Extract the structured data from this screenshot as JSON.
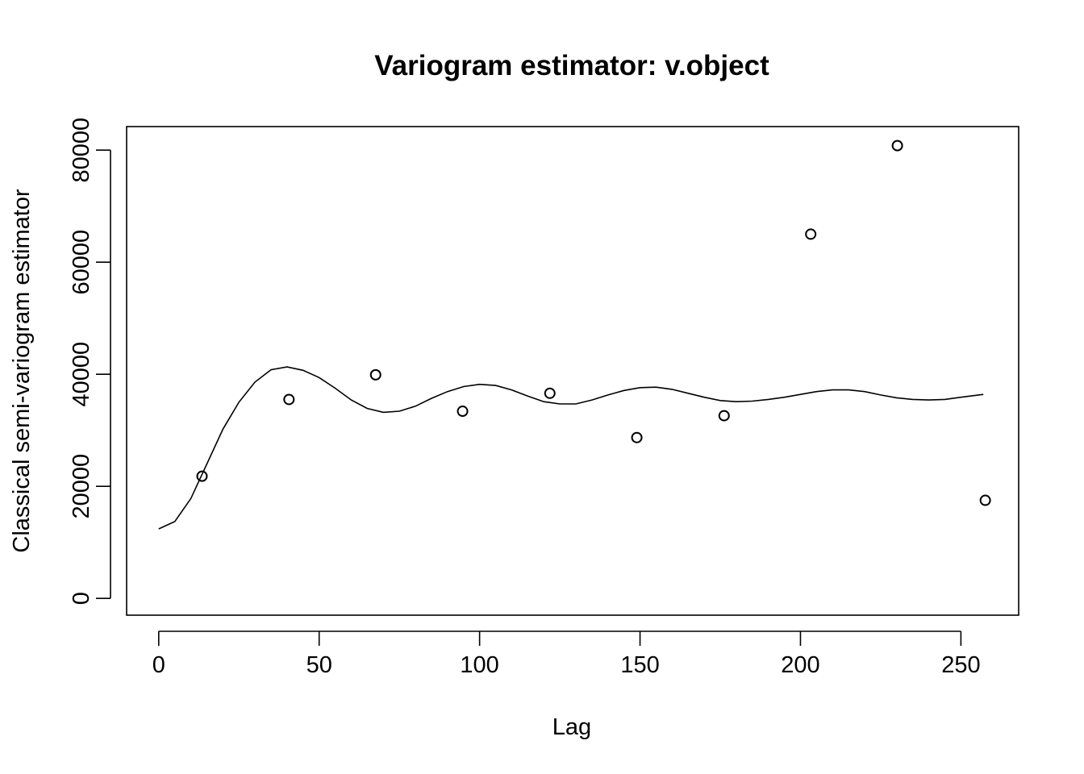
{
  "chart_data": {
    "type": "scatter",
    "title": "Variogram estimator: v.object",
    "xlabel": "Lag",
    "ylabel": "Classical semi-variogram estimator",
    "xlim": [
      -10,
      268
    ],
    "ylim": [
      -3000,
      84200
    ],
    "x_ticks": [
      0,
      50,
      100,
      150,
      200,
      250
    ],
    "x_tick_labels": [
      "0",
      "50",
      "100",
      "150",
      "200",
      "250"
    ],
    "y_ticks": [
      0,
      20000,
      40000,
      60000,
      80000
    ],
    "y_tick_labels": [
      "0",
      "20000",
      "40000",
      "60000",
      "80000"
    ],
    "grid": false,
    "legend": "none",
    "series": [
      {
        "kind": "points",
        "marker": "open-circle",
        "x": [
          13.5,
          40.6,
          67.6,
          94.7,
          121.9,
          149,
          176.2,
          203.2,
          230.2,
          257.6
        ],
        "y": [
          21800,
          35500,
          39900,
          33400,
          36600,
          28700,
          32600,
          65000,
          80800,
          17500
        ]
      },
      {
        "kind": "line",
        "x": [
          0,
          5,
          10,
          15,
          20,
          25,
          30,
          35,
          40,
          45,
          50,
          55,
          60,
          65,
          70,
          75,
          80,
          85,
          90,
          95,
          100,
          105,
          110,
          115,
          120,
          125,
          130,
          135,
          140,
          145,
          150,
          155,
          160,
          165,
          170,
          175,
          180,
          185,
          190,
          195,
          200,
          205,
          210,
          215,
          220,
          225,
          230,
          235,
          240,
          245,
          250,
          257
        ],
        "y": [
          12400,
          13700,
          17800,
          24000,
          30200,
          35000,
          38600,
          40800,
          41300,
          40700,
          39400,
          37500,
          35400,
          33900,
          33200,
          33400,
          34300,
          35700,
          36900,
          37800,
          38200,
          38000,
          37200,
          36100,
          35100,
          34700,
          34700,
          35400,
          36300,
          37100,
          37600,
          37700,
          37300,
          36600,
          35900,
          35300,
          35100,
          35200,
          35500,
          35900,
          36400,
          36900,
          37200,
          37200,
          36900,
          36300,
          35800,
          35500,
          35400,
          35500,
          35900,
          36400
        ]
      }
    ]
  }
}
